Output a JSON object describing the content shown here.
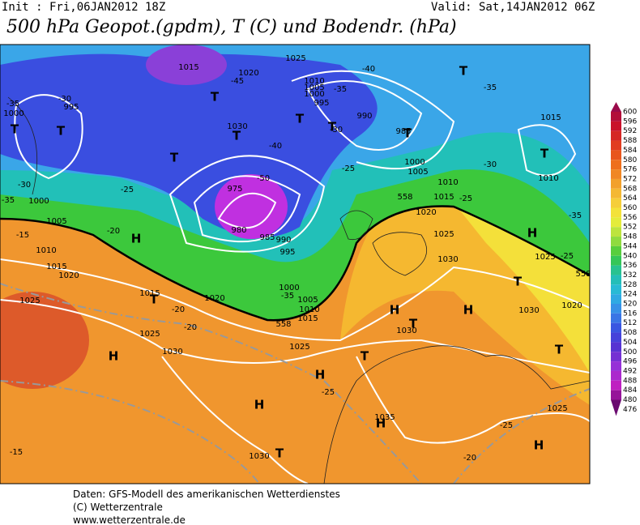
{
  "header": {
    "init": "Init : Fri,06JAN2012 18Z",
    "valid": "Valid: Sat,14JAN2012 06Z",
    "title": "500 hPa Geopot.(gpdm), T (C) und Bodendr. (hPa)"
  },
  "colorbar": {
    "ticks": [
      600,
      596,
      592,
      588,
      584,
      580,
      576,
      572,
      568,
      564,
      560,
      556,
      552,
      548,
      544,
      540,
      536,
      532,
      528,
      524,
      520,
      516,
      512,
      508,
      504,
      500,
      496,
      492,
      488,
      484,
      480,
      476
    ]
  },
  "map": {
    "labels": [
      "H",
      "H",
      "H",
      "H",
      "H",
      "H",
      "H",
      "H",
      "H",
      "T",
      "T",
      "T",
      "T",
      "T",
      "T",
      "T",
      "T",
      "T",
      "T",
      "T",
      "T",
      "T",
      "T",
      "T",
      "T",
      "1015",
      "1025",
      "1020",
      "1000",
      "995",
      "1030",
      "1010",
      "1005",
      "1000",
      "995",
      "990",
      "985",
      "1000",
      "1005",
      "1010",
      "1015",
      "1020",
      "1025",
      "1030",
      "1015",
      "1010",
      "1000",
      "1005",
      "1010",
      "1015",
      "1020",
      "1025",
      "1015",
      "1020",
      "1025",
      "1030",
      "1025",
      "1030",
      "1030",
      "1020",
      "1025",
      "1025",
      "1035",
      "1030",
      "990",
      "995",
      "1000",
      "1005",
      "1010",
      "1015",
      "985",
      "980",
      "975",
      "-35",
      "-30",
      "-30",
      "-35",
      "-25",
      "-20",
      "-15",
      "-20",
      "-20",
      "-25",
      "-25",
      "-20",
      "-15",
      "-25",
      "-30",
      "-35",
      "-35",
      "-25",
      "-40",
      "-35",
      "-30",
      "-25",
      "-35",
      "-40",
      "-45",
      "-50",
      "558",
      "558",
      "558"
    ]
  },
  "footer": {
    "line1": "Daten: GFS-Modell des amerikanischen Wetterdienstes",
    "line2": "(C) Wetterzentrale",
    "line3": "www.wetterzentrale.de"
  }
}
